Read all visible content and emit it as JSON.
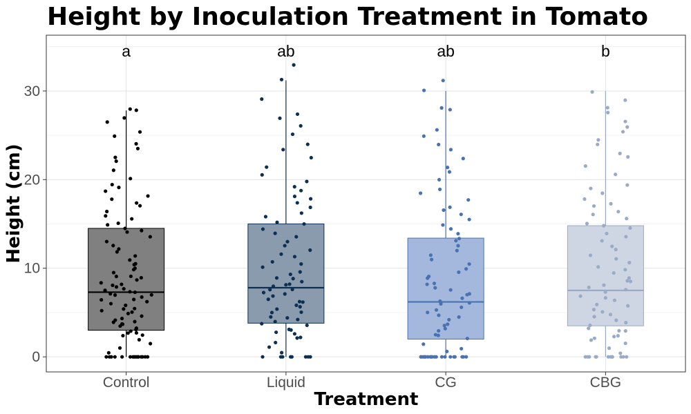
{
  "chart_data": {
    "type": "boxplot",
    "title": "Height by Inoculation Treatment in Tomato",
    "xlabel": "Treatment",
    "ylabel": "Height (cm)",
    "ylim": [
      -1.7,
      36.3
    ],
    "yticks": [
      0,
      10,
      20,
      30
    ],
    "grid": true,
    "legend": "none",
    "categories": [
      "Control",
      "Liquid",
      "CG",
      "CBG"
    ],
    "significance_letters": [
      "a",
      "ab",
      "ab",
      "b"
    ],
    "colors": {
      "Control": {
        "fill": "#808080",
        "stroke": "#000000",
        "points": "#000000"
      },
      "Liquid": {
        "fill": "#8a9bad",
        "stroke": "#0d2f52",
        "points": "#0d2f52"
      },
      "CG": {
        "fill": "#a3b8dc",
        "stroke": "#4a72b2",
        "points": "#4a72b2"
      },
      "CBG": {
        "fill": "#ced6e4",
        "stroke": "#9aabc7",
        "points": "#9aabc7"
      }
    },
    "boxes": [
      {
        "name": "Control",
        "q1": 3.0,
        "median": 7.3,
        "q3": 14.5,
        "whisker_low": 0,
        "whisker_high": 27.8
      },
      {
        "name": "Liquid",
        "q1": 3.8,
        "median": 7.8,
        "q3": 15.0,
        "whisker_low": 0,
        "whisker_high": 31.2
      },
      {
        "name": "CG",
        "q1": 2.0,
        "median": 6.2,
        "q3": 13.4,
        "whisker_low": 0,
        "whisker_high": 30.0
      },
      {
        "name": "CBG",
        "q1": 3.5,
        "median": 7.5,
        "q3": 14.8,
        "whisker_low": 0,
        "whisker_high": 30.0
      }
    ],
    "points": [
      {
        "name": "Control",
        "values": [
          0,
          0,
          0,
          0,
          0,
          0,
          0,
          0,
          0,
          0,
          0,
          0,
          0,
          0,
          0,
          0,
          0.5,
          1.0,
          1.5,
          2.0,
          2.3,
          2.5,
          2.6,
          2.8,
          3.0,
          3.1,
          3.3,
          3.5,
          3.6,
          3.8,
          4.0,
          4.1,
          4.2,
          4.4,
          4.6,
          4.8,
          5.0,
          5.2,
          5.4,
          5.5,
          5.7,
          6.0,
          6.2,
          6.4,
          6.5,
          6.7,
          6.9,
          7.0,
          7.1,
          7.2,
          7.3,
          7.4,
          7.5,
          7.6,
          7.8,
          8.0,
          8.2,
          8.4,
          8.6,
          8.8,
          9.0,
          9.2,
          9.5,
          9.8,
          10.0,
          10.3,
          10.6,
          11.0,
          11.4,
          11.8,
          12.2,
          12.6,
          13.0,
          13.5,
          14.0,
          14.3,
          14.5,
          14.8,
          15.2,
          15.6,
          16.0,
          16.5,
          17.0,
          17.4,
          17.8,
          18.2,
          18.6,
          19.0,
          19.5,
          20.0,
          21.0,
          22.0,
          22.5,
          23.5,
          24.0,
          25.0,
          25.5,
          26.5,
          27.0,
          27.8,
          28.0
        ]
      },
      {
        "name": "Liquid",
        "values": [
          0,
          0,
          0,
          0,
          0,
          0,
          0,
          0,
          0.5,
          1.0,
          1.5,
          2.0,
          2.2,
          2.5,
          2.7,
          3.0,
          3.2,
          3.5,
          3.7,
          3.9,
          4.1,
          4.3,
          4.6,
          4.9,
          5.1,
          5.3,
          5.6,
          5.9,
          6.1,
          6.3,
          6.6,
          6.9,
          7.1,
          7.3,
          7.5,
          7.7,
          7.9,
          8.1,
          8.3,
          8.5,
          8.8,
          9.0,
          9.3,
          9.6,
          10.0,
          10.4,
          10.8,
          11.2,
          11.6,
          12.0,
          12.5,
          13.0,
          13.5,
          14.0,
          14.5,
          15.0,
          15.3,
          15.7,
          16.2,
          16.8,
          17.3,
          17.8,
          18.2,
          18.8,
          19.2,
          19.8,
          20.5,
          21.5,
          22.5,
          23.5,
          24.0,
          25.0,
          26.0,
          27.0,
          27.5,
          29.0,
          31.2,
          33.0
        ]
      },
      {
        "name": "CG",
        "values": [
          0,
          0,
          0,
          0,
          0,
          0,
          0,
          0,
          0,
          0,
          0,
          0,
          0,
          0,
          0,
          0,
          0,
          0,
          0,
          0,
          0.5,
          1.0,
          1.5,
          2.0,
          2.3,
          2.6,
          2.9,
          3.2,
          3.5,
          3.8,
          4.1,
          4.4,
          4.7,
          5.0,
          5.3,
          5.6,
          5.9,
          6.1,
          6.3,
          6.6,
          6.9,
          7.2,
          7.5,
          7.8,
          8.1,
          8.4,
          8.8,
          9.2,
          9.6,
          10.0,
          10.5,
          11.0,
          11.5,
          12.0,
          12.5,
          13.0,
          13.4,
          14.0,
          14.5,
          15.0,
          15.5,
          16.0,
          16.5,
          17.0,
          17.8,
          18.5,
          19.0,
          20.0,
          20.8,
          21.5,
          22.5,
          23.5,
          24.0,
          25.0,
          25.5,
          27.8,
          28.0,
          30.0,
          31.2
        ]
      },
      {
        "name": "CBG",
        "values": [
          0,
          0,
          0,
          0,
          0,
          0,
          0,
          0,
          0,
          0,
          0,
          0,
          0.5,
          1.0,
          1.5,
          1.8,
          2.0,
          2.2,
          2.5,
          2.8,
          3.0,
          3.3,
          3.6,
          3.9,
          4.2,
          4.5,
          4.8,
          5.1,
          5.4,
          5.7,
          6.0,
          6.3,
          6.6,
          6.9,
          7.2,
          7.5,
          7.8,
          8.1,
          8.4,
          8.7,
          9.0,
          9.4,
          9.8,
          10.2,
          10.6,
          11.0,
          11.5,
          12.0,
          12.5,
          13.0,
          13.5,
          14.0,
          14.5,
          14.8,
          15.0,
          15.5,
          16.0,
          16.5,
          17.0,
          17.3,
          17.8,
          18.5,
          19.0,
          19.5,
          20.5,
          21.5,
          22.5,
          23.0,
          24.0,
          24.5,
          25.5,
          26.0,
          26.5,
          27.5,
          28.0,
          29.0,
          30.0
        ]
      }
    ]
  }
}
